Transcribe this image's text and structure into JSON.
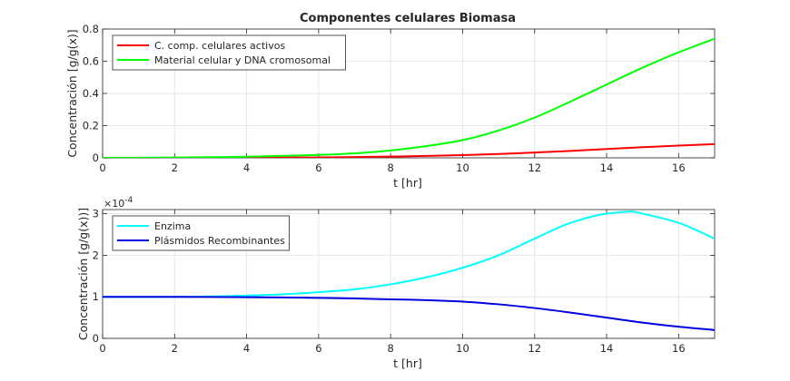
{
  "chart_data": [
    {
      "type": "line",
      "title": "Componentes celulares Biomasa",
      "xlabel": "t [hr]",
      "ylabel": "Concentración [g/g(x)]",
      "xlim": [
        0,
        17
      ],
      "ylim": [
        0,
        0.8
      ],
      "xticks": [
        0,
        2,
        4,
        6,
        8,
        10,
        12,
        14,
        16
      ],
      "yticks": [
        0,
        0.2,
        0.4,
        0.6,
        0.8
      ],
      "ytick_labels": [
        "0",
        "0.2",
        "0.4",
        "0.6",
        "0.8"
      ],
      "grid": true,
      "legend_position": "top-left",
      "series": [
        {
          "name": "C. comp. celulares activos",
          "color": "#ff0000",
          "x": [
            0,
            1,
            2,
            3,
            4,
            5,
            6,
            7,
            8,
            9,
            10,
            11,
            12,
            13,
            14,
            15,
            16,
            17
          ],
          "y": [
            0,
            0,
            0,
            0,
            0.001,
            0.002,
            0.003,
            0.005,
            0.008,
            0.012,
            0.017,
            0.024,
            0.033,
            0.043,
            0.055,
            0.066,
            0.076,
            0.085
          ]
        },
        {
          "name": "Material celular y DNA cromosomal",
          "color": "#00ff00",
          "x": [
            0,
            1,
            2,
            3,
            4,
            5,
            6,
            7,
            8,
            9,
            10,
            11,
            12,
            13,
            14,
            15,
            16,
            17
          ],
          "y": [
            0,
            0.001,
            0.002,
            0.004,
            0.007,
            0.012,
            0.018,
            0.028,
            0.046,
            0.073,
            0.11,
            0.17,
            0.25,
            0.35,
            0.455,
            0.56,
            0.655,
            0.74
          ]
        }
      ]
    },
    {
      "type": "line",
      "title": "",
      "xlabel": "t [hr]",
      "ylabel": "Concentración [g/g(x))]",
      "exponent_label": "×10",
      "exponent_power": "-4",
      "xlim": [
        0,
        17
      ],
      "ylim": [
        0,
        3.1
      ],
      "xticks": [
        0,
        2,
        4,
        6,
        8,
        10,
        12,
        14,
        16
      ],
      "yticks": [
        0,
        1,
        2,
        3
      ],
      "ytick_labels": [
        "0",
        "1",
        "2",
        "3"
      ],
      "grid": true,
      "legend_position": "top-left",
      "series": [
        {
          "name": "Enzima",
          "color": "#00ffff",
          "x": [
            0,
            1,
            2,
            3,
            4,
            5,
            6,
            7,
            8,
            9,
            10,
            11,
            12,
            13,
            14,
            14.7,
            15,
            16,
            17
          ],
          "y": [
            1,
            1,
            1,
            1.01,
            1.03,
            1.06,
            1.11,
            1.18,
            1.3,
            1.47,
            1.7,
            2.0,
            2.4,
            2.78,
            3.0,
            3.05,
            3.0,
            2.78,
            2.4
          ]
        },
        {
          "name": "Plásmidos Recombinantes",
          "color": "#0000e0",
          "x": [
            0,
            1,
            2,
            3,
            4,
            5,
            6,
            7,
            8,
            9,
            10,
            11,
            12,
            13,
            14,
            15,
            16,
            17
          ],
          "y": [
            1,
            1,
            1,
            0.995,
            0.99,
            0.985,
            0.975,
            0.96,
            0.94,
            0.92,
            0.885,
            0.82,
            0.73,
            0.62,
            0.5,
            0.38,
            0.28,
            0.2
          ]
        }
      ]
    }
  ]
}
